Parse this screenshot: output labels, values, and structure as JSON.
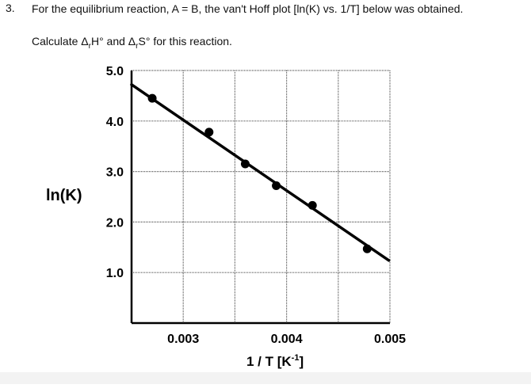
{
  "question": {
    "number": "3.",
    "text": "For the equilibrium reaction, A = B, the van't Hoff plot [ln(K) vs. 1/T] below was obtained.",
    "instruction_parts": {
      "p1": "Calculate Δ",
      "sub1": "r",
      "p2": "H° and Δ",
      "sub2": "r",
      "p3": "S° for this reaction."
    }
  },
  "chart_data": {
    "type": "scatter",
    "title": "",
    "ylabel": "ln(K)",
    "xlabel_parts": {
      "main": "1 / T [K",
      "sup": "-1",
      "end": "]"
    },
    "xlim": [
      0.0025,
      0.005
    ],
    "ylim": [
      0.0,
      5.0
    ],
    "x_tick_labels": [
      {
        "value": 0.003,
        "label": "0.003"
      },
      {
        "value": 0.004,
        "label": "0.004"
      },
      {
        "value": 0.005,
        "label": "0.005"
      }
    ],
    "y_tick_labels": [
      {
        "value": 1.0,
        "label": "1.0"
      },
      {
        "value": 2.0,
        "label": "2.0"
      },
      {
        "value": 3.0,
        "label": "3.0"
      },
      {
        "value": 4.0,
        "label": "4.0"
      },
      {
        "value": 5.0,
        "label": "5.0"
      }
    ],
    "grid": true,
    "grid_x": [
      0.0025,
      0.003,
      0.0035,
      0.004,
      0.0045,
      0.005
    ],
    "grid_y": [
      0.0,
      1.0,
      2.0,
      3.0,
      4.0,
      5.0
    ],
    "points": [
      {
        "x": 0.0027,
        "y": 4.45
      },
      {
        "x": 0.00325,
        "y": 3.78
      },
      {
        "x": 0.0036,
        "y": 3.15
      },
      {
        "x": 0.0039,
        "y": 2.72
      },
      {
        "x": 0.00425,
        "y": 2.33
      },
      {
        "x": 0.00478,
        "y": 1.47
      }
    ],
    "fit_line": {
      "x": [
        0.0025,
        0.00499
      ],
      "y": [
        4.72,
        1.24
      ]
    },
    "colors": {
      "marks": "#000000",
      "grid": "#555555",
      "axis": "#000000"
    }
  }
}
